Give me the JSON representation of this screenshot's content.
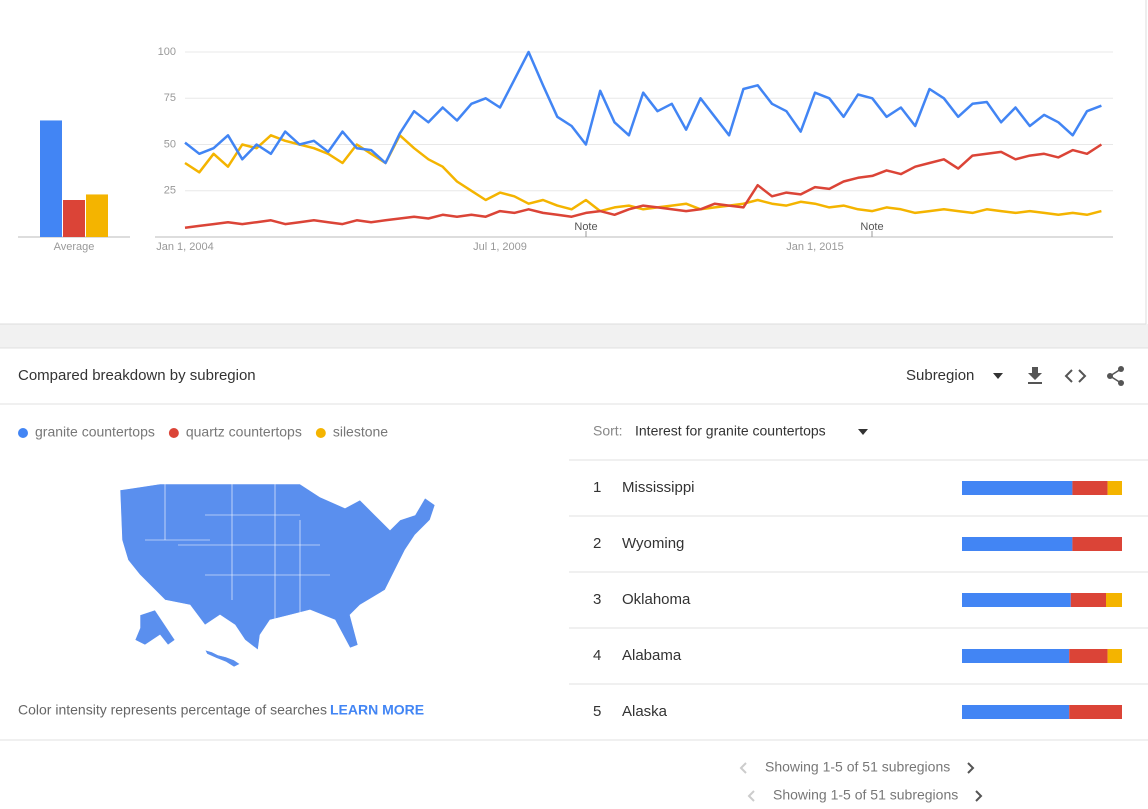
{
  "chart_data": {
    "type": "line",
    "categories": [
      "Jan 1, 2004",
      null,
      null,
      null,
      null,
      null,
      null,
      null,
      null,
      null,
      null,
      null,
      null,
      null,
      null,
      null,
      null,
      null,
      null,
      null,
      null,
      null,
      "Jul 1, 2009",
      null,
      null,
      null,
      null,
      null,
      null,
      null,
      null,
      null,
      null,
      null,
      null,
      null,
      null,
      null,
      null,
      null,
      null,
      null,
      null,
      null,
      "Jan 1, 2015",
      null,
      null,
      null,
      null,
      null,
      null,
      null,
      null,
      null,
      null,
      null,
      null,
      null,
      null,
      null,
      null,
      null,
      null,
      null,
      null
    ],
    "series": [
      {
        "name": "granite countertops",
        "color": "#4285f4",
        "values": [
          51,
          45,
          48,
          55,
          42,
          50,
          45,
          57,
          50,
          52,
          46,
          57,
          48,
          47,
          40,
          56,
          68,
          62,
          70,
          63,
          72,
          75,
          70,
          85,
          100,
          82,
          65,
          60,
          50,
          79,
          62,
          55,
          78,
          68,
          72,
          58,
          75,
          65,
          55,
          80,
          82,
          72,
          68,
          57,
          78,
          75,
          65,
          77,
          75,
          65,
          70,
          60,
          80,
          75,
          65,
          72,
          73,
          62,
          70,
          60,
          66,
          62,
          55,
          68,
          71
        ]
      },
      {
        "name": "quartz countertops",
        "color": "#db4437",
        "values": [
          5,
          6,
          7,
          8,
          7,
          8,
          9,
          7,
          8,
          9,
          8,
          7,
          9,
          8,
          9,
          10,
          11,
          10,
          12,
          11,
          12,
          11,
          14,
          13,
          15,
          13,
          12,
          11,
          13,
          14,
          12,
          15,
          17,
          16,
          15,
          14,
          15,
          18,
          17,
          16,
          28,
          22,
          24,
          23,
          27,
          26,
          30,
          32,
          33,
          36,
          34,
          38,
          40,
          42,
          37,
          44,
          45,
          46,
          42,
          44,
          45,
          43,
          47,
          45,
          50
        ]
      },
      {
        "name": "silestone",
        "color": "#f4b400",
        "values": [
          40,
          35,
          45,
          38,
          50,
          48,
          55,
          52,
          50,
          48,
          45,
          40,
          50,
          45,
          40,
          55,
          48,
          42,
          38,
          30,
          25,
          20,
          24,
          22,
          18,
          20,
          17,
          15,
          20,
          14,
          16,
          17,
          15,
          16,
          17,
          18,
          15,
          16,
          17,
          18,
          20,
          18,
          17,
          19,
          18,
          16,
          17,
          15,
          14,
          16,
          15,
          13,
          14,
          15,
          14,
          13,
          15,
          14,
          13,
          14,
          13,
          12,
          13,
          12,
          14
        ]
      }
    ],
    "ylim": [
      0,
      100
    ],
    "yticks": [
      25,
      50,
      75,
      100
    ],
    "grid": true,
    "notes": [
      "Note",
      "Note"
    ],
    "averages": {
      "label": "Average",
      "values": [
        63,
        20,
        23
      ]
    }
  },
  "breakdown": {
    "title": "Compared breakdown by subregion",
    "resolution": "Subregion",
    "caption": "Color intensity represents percentage of searches",
    "link": "LEARN MORE",
    "sort_label": "Sort:",
    "sort_value": "Interest for granite countertops",
    "rows": [
      {
        "rank": 1,
        "name": "Mississippi",
        "shares": [
          69,
          22,
          9
        ]
      },
      {
        "rank": 2,
        "name": "Wyoming",
        "shares": [
          69,
          31,
          0
        ]
      },
      {
        "rank": 3,
        "name": "Oklahoma",
        "shares": [
          68,
          22,
          10
        ]
      },
      {
        "rank": 4,
        "name": "Alabama",
        "shares": [
          67,
          24,
          9
        ]
      },
      {
        "rank": 5,
        "name": "Alaska",
        "shares": [
          67,
          33,
          0
        ]
      }
    ],
    "pagination": "Showing 1-5 of 51 subregions"
  }
}
